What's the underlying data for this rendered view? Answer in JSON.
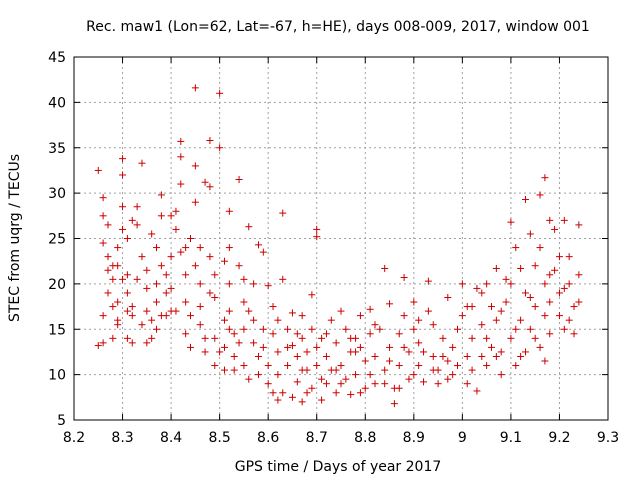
{
  "chart_data": {
    "type": "scatter",
    "title": "Rec. maw1 (Lon=62, Lat=-67, h=HE), days 008-009, 2017, window 001",
    "xlabel": "GPS time / Days of year 2017",
    "ylabel": "STEC from uqrg / TECUs",
    "xlim": [
      8.2,
      9.3
    ],
    "ylim": [
      5,
      45
    ],
    "xticks": [
      "8.2",
      "8.3",
      "8.4",
      "8.5",
      "8.6",
      "8.7",
      "8.8",
      "8.9",
      "9",
      "9.1",
      "9.2",
      "9.3"
    ],
    "yticks": [
      "5",
      "10",
      "15",
      "20",
      "25",
      "30",
      "35",
      "40",
      "45"
    ],
    "grid": true,
    "marker": "plus",
    "color": "#cc0000",
    "series": [
      {
        "name": "STEC",
        "points": [
          [
            8.25,
            32.5
          ],
          [
            8.26,
            27.5
          ],
          [
            8.26,
            29.5
          ],
          [
            8.27,
            26.5
          ],
          [
            8.27,
            23
          ],
          [
            8.27,
            21.5
          ],
          [
            8.27,
            19
          ],
          [
            8.28,
            20.5
          ],
          [
            8.28,
            17.5
          ],
          [
            8.28,
            14
          ],
          [
            8.25,
            13.2
          ],
          [
            8.26,
            13.5
          ],
          [
            8.26,
            16.5
          ],
          [
            8.29,
            16
          ],
          [
            8.29,
            18
          ],
          [
            8.29,
            22
          ],
          [
            8.29,
            24
          ],
          [
            8.3,
            33.8
          ],
          [
            8.3,
            32
          ],
          [
            8.3,
            28.5
          ],
          [
            8.3,
            26
          ],
          [
            8.31,
            25
          ],
          [
            8.31,
            21
          ],
          [
            8.31,
            19
          ],
          [
            8.31,
            14
          ],
          [
            8.32,
            13.5
          ],
          [
            8.32,
            16.5
          ],
          [
            8.32,
            17.5
          ],
          [
            8.33,
            20.5
          ],
          [
            8.33,
            26.5
          ],
          [
            8.33,
            28.5
          ],
          [
            8.34,
            33.3
          ],
          [
            8.34,
            23
          ],
          [
            8.35,
            21.5
          ],
          [
            8.35,
            19.5
          ],
          [
            8.35,
            17
          ],
          [
            8.35,
            13.5
          ],
          [
            8.36,
            14
          ],
          [
            8.36,
            16
          ],
          [
            8.37,
            18
          ],
          [
            8.37,
            20
          ],
          [
            8.37,
            24
          ],
          [
            8.38,
            27.5
          ],
          [
            8.38,
            29.8
          ],
          [
            8.38,
            22
          ],
          [
            8.39,
            21
          ],
          [
            8.39,
            19
          ],
          [
            8.39,
            16.5
          ],
          [
            8.4,
            17
          ],
          [
            8.4,
            19.5
          ],
          [
            8.4,
            23
          ],
          [
            8.41,
            26
          ],
          [
            8.41,
            28
          ],
          [
            8.42,
            35.7
          ],
          [
            8.42,
            34
          ],
          [
            8.42,
            31
          ],
          [
            8.43,
            24
          ],
          [
            8.43,
            21
          ],
          [
            8.43,
            18
          ],
          [
            8.44,
            16.5
          ],
          [
            8.44,
            13
          ],
          [
            8.45,
            41.6
          ],
          [
            8.45,
            33
          ],
          [
            8.45,
            29
          ],
          [
            8.45,
            22
          ],
          [
            8.46,
            20
          ],
          [
            8.46,
            17.5
          ],
          [
            8.46,
            15.5
          ],
          [
            8.47,
            12.5
          ],
          [
            8.47,
            31.2
          ],
          [
            8.48,
            35.8
          ],
          [
            8.48,
            30.7
          ],
          [
            8.48,
            23
          ],
          [
            8.49,
            21
          ],
          [
            8.49,
            18.5
          ],
          [
            8.49,
            14
          ],
          [
            8.49,
            11
          ],
          [
            8.5,
            41
          ],
          [
            8.5,
            35
          ],
          [
            8.51,
            10.5
          ],
          [
            8.51,
            13
          ],
          [
            8.51,
            16
          ],
          [
            8.52,
            28
          ],
          [
            8.52,
            24
          ],
          [
            8.52,
            20
          ],
          [
            8.52,
            17
          ],
          [
            8.53,
            14.5
          ],
          [
            8.53,
            12
          ],
          [
            8.53,
            10.5
          ],
          [
            8.54,
            31.5
          ],
          [
            8.54,
            22
          ],
          [
            8.55,
            18
          ],
          [
            8.55,
            15
          ],
          [
            8.55,
            11
          ],
          [
            8.56,
            26.3
          ],
          [
            8.56,
            9.5
          ],
          [
            8.57,
            20
          ],
          [
            8.57,
            16
          ],
          [
            8.57,
            13.5
          ],
          [
            8.58,
            24.3
          ],
          [
            8.58,
            12
          ],
          [
            8.59,
            23.5
          ],
          [
            8.59,
            15
          ],
          [
            8.6,
            19.8
          ],
          [
            8.6,
            11
          ],
          [
            8.6,
            9
          ],
          [
            8.61,
            14.5
          ],
          [
            8.61,
            17.5
          ],
          [
            8.62,
            7.2
          ],
          [
            8.62,
            10
          ],
          [
            8.62,
            12.5
          ],
          [
            8.63,
            27.8
          ],
          [
            8.63,
            20.5
          ],
          [
            8.63,
            8
          ],
          [
            8.64,
            15
          ],
          [
            8.64,
            11
          ],
          [
            8.65,
            16.8
          ],
          [
            8.65,
            13.2
          ],
          [
            8.65,
            7.5
          ],
          [
            8.66,
            12
          ],
          [
            8.66,
            9.2
          ],
          [
            8.67,
            16.5
          ],
          [
            8.67,
            14
          ],
          [
            8.67,
            7
          ],
          [
            8.68,
            10.5
          ],
          [
            8.68,
            12.5
          ],
          [
            8.69,
            18.8
          ],
          [
            8.69,
            15
          ],
          [
            8.69,
            8.5
          ],
          [
            8.7,
            26
          ],
          [
            8.7,
            25.2
          ],
          [
            8.7,
            11
          ],
          [
            8.71,
            14
          ],
          [
            8.71,
            7.2
          ],
          [
            8.72,
            9
          ],
          [
            8.72,
            12
          ],
          [
            8.73,
            16
          ],
          [
            8.73,
            10.5
          ],
          [
            8.74,
            8
          ],
          [
            8.74,
            13.5
          ],
          [
            8.75,
            17
          ],
          [
            8.75,
            11
          ],
          [
            8.76,
            9.5
          ],
          [
            8.76,
            15
          ],
          [
            8.77,
            12.5
          ],
          [
            8.77,
            7.8
          ],
          [
            8.78,
            14
          ],
          [
            8.78,
            10
          ],
          [
            8.79,
            13
          ],
          [
            8.79,
            16.5
          ],
          [
            8.8,
            8.5
          ],
          [
            8.8,
            11.5
          ],
          [
            8.81,
            14.5
          ],
          [
            8.81,
            17.2
          ],
          [
            8.82,
            9
          ],
          [
            8.82,
            12
          ],
          [
            8.83,
            15
          ],
          [
            8.84,
            21.7
          ],
          [
            8.84,
            10.5
          ],
          [
            8.85,
            17.8
          ],
          [
            8.85,
            13
          ],
          [
            8.86,
            8.5
          ],
          [
            8.86,
            6.8
          ],
          [
            8.87,
            11
          ],
          [
            8.87,
            14.5
          ],
          [
            8.88,
            20.7
          ],
          [
            8.88,
            16.5
          ],
          [
            8.89,
            9.5
          ],
          [
            8.89,
            12.5
          ],
          [
            8.9,
            18
          ],
          [
            8.9,
            15
          ],
          [
            8.91,
            11
          ],
          [
            8.91,
            13.5
          ],
          [
            8.92,
            9.2
          ],
          [
            8.93,
            17
          ],
          [
            8.93,
            20.3
          ],
          [
            8.94,
            12
          ],
          [
            8.94,
            15.5
          ],
          [
            8.95,
            10.5
          ],
          [
            8.95,
            9
          ],
          [
            8.96,
            14
          ],
          [
            8.97,
            18.5
          ],
          [
            8.97,
            11.5
          ],
          [
            8.98,
            10
          ],
          [
            8.98,
            13
          ],
          [
            8.99,
            15
          ],
          [
            9,
            16.5
          ],
          [
            9,
            20
          ],
          [
            9.01,
            12
          ],
          [
            9.01,
            9
          ],
          [
            9.02,
            14
          ],
          [
            9.02,
            17.5
          ],
          [
            9.03,
            19.5
          ],
          [
            9.03,
            8.2
          ],
          [
            9.04,
            15.5
          ],
          [
            9.04,
            12
          ],
          [
            9.05,
            20
          ],
          [
            9.05,
            11
          ],
          [
            9.06,
            13
          ],
          [
            9.06,
            17.5
          ],
          [
            9.07,
            21.7
          ],
          [
            9.07,
            16
          ],
          [
            9.08,
            10
          ],
          [
            9.08,
            12.5
          ],
          [
            9.09,
            18
          ],
          [
            9.09,
            20.5
          ],
          [
            9.1,
            26.8
          ],
          [
            9.1,
            14
          ],
          [
            9.11,
            11
          ],
          [
            9.11,
            24
          ],
          [
            9.12,
            16
          ],
          [
            9.12,
            21.7
          ],
          [
            9.13,
            29.3
          ],
          [
            9.13,
            19
          ],
          [
            9.13,
            12.5
          ],
          [
            9.14,
            25.5
          ],
          [
            9.14,
            15
          ],
          [
            9.15,
            22
          ],
          [
            9.15,
            17.5
          ],
          [
            9.16,
            29.8
          ],
          [
            9.16,
            24
          ],
          [
            9.16,
            13
          ],
          [
            9.17,
            31.7
          ],
          [
            9.17,
            20
          ],
          [
            9.17,
            11.5
          ],
          [
            9.18,
            27
          ],
          [
            9.18,
            18
          ],
          [
            9.18,
            14.5
          ],
          [
            9.19,
            21.5
          ],
          [
            9.19,
            26
          ],
          [
            9.2,
            19
          ],
          [
            9.2,
            16.5
          ],
          [
            9.21,
            27
          ],
          [
            9.21,
            15
          ],
          [
            9.22,
            23
          ],
          [
            9.22,
            20
          ],
          [
            9.23,
            17.5
          ],
          [
            9.23,
            14.5
          ],
          [
            9.24,
            26.5
          ],
          [
            9.24,
            21
          ],
          [
            8.26,
            24.5
          ],
          [
            8.28,
            22
          ],
          [
            8.29,
            15.5
          ],
          [
            8.3,
            20.5
          ],
          [
            8.31,
            17
          ],
          [
            8.32,
            27
          ],
          [
            8.34,
            15.5
          ],
          [
            8.36,
            25.5
          ],
          [
            8.37,
            15
          ],
          [
            8.38,
            16.5
          ],
          [
            8.4,
            27.5
          ],
          [
            8.41,
            17
          ],
          [
            8.42,
            23.5
          ],
          [
            8.43,
            14.5
          ],
          [
            8.44,
            25
          ],
          [
            8.46,
            24
          ],
          [
            8.47,
            14
          ],
          [
            8.48,
            19
          ],
          [
            8.5,
            12.5
          ],
          [
            8.51,
            22.5
          ],
          [
            8.52,
            15
          ],
          [
            8.54,
            13.5
          ],
          [
            8.55,
            20.5
          ],
          [
            8.56,
            17
          ],
          [
            8.58,
            10
          ],
          [
            8.59,
            13
          ],
          [
            8.61,
            8
          ],
          [
            8.62,
            16
          ],
          [
            8.64,
            13
          ],
          [
            8.66,
            14.5
          ],
          [
            8.67,
            10.5
          ],
          [
            8.68,
            8
          ],
          [
            8.7,
            13
          ],
          [
            8.71,
            9.5
          ],
          [
            8.72,
            14.5
          ],
          [
            8.74,
            10.5
          ],
          [
            8.75,
            9
          ],
          [
            8.77,
            14
          ],
          [
            8.78,
            12.5
          ],
          [
            8.79,
            8
          ],
          [
            8.81,
            10
          ],
          [
            8.82,
            15.5
          ],
          [
            8.84,
            9
          ],
          [
            8.85,
            11.5
          ],
          [
            8.87,
            8.5
          ],
          [
            8.88,
            13
          ],
          [
            8.9,
            10
          ],
          [
            8.91,
            16
          ],
          [
            8.92,
            12.5
          ],
          [
            8.94,
            10.5
          ],
          [
            8.96,
            12
          ],
          [
            8.97,
            9.5
          ],
          [
            8.99,
            11
          ],
          [
            9.01,
            17.5
          ],
          [
            9.02,
            10.5
          ],
          [
            9.04,
            19
          ],
          [
            9.05,
            14
          ],
          [
            9.07,
            12
          ],
          [
            9.08,
            17
          ],
          [
            9.1,
            20
          ],
          [
            9.11,
            15
          ],
          [
            9.12,
            12
          ],
          [
            9.14,
            18.5
          ],
          [
            9.15,
            14
          ],
          [
            9.17,
            16.5
          ],
          [
            9.18,
            21
          ],
          [
            9.2,
            23
          ],
          [
            9.21,
            19.5
          ],
          [
            9.22,
            16
          ],
          [
            9.24,
            18
          ]
        ]
      }
    ]
  }
}
